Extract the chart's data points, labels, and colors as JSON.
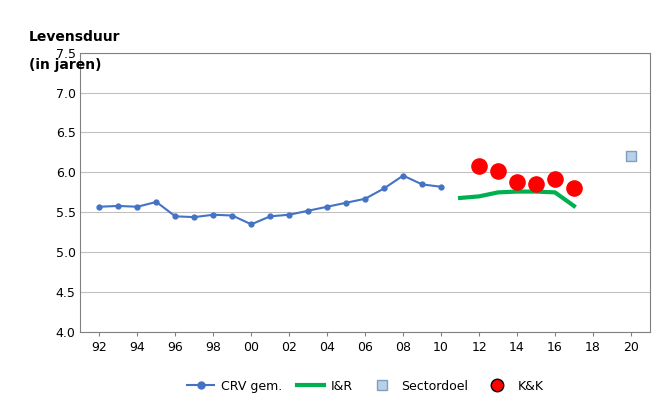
{
  "crv_x": [
    92,
    93,
    94,
    95,
    96,
    97,
    98,
    99,
    100,
    101,
    102,
    103,
    104,
    105,
    106,
    107,
    108,
    109,
    110
  ],
  "crv_y": [
    5.57,
    5.58,
    5.57,
    5.63,
    5.45,
    5.44,
    5.47,
    5.46,
    5.35,
    5.45,
    5.47,
    5.52,
    5.57,
    5.62,
    5.67,
    5.8,
    5.96,
    5.85,
    5.82
  ],
  "ir_x": [
    111,
    112,
    113,
    114,
    115,
    116,
    117
  ],
  "ir_y": [
    5.68,
    5.7,
    5.75,
    5.76,
    5.76,
    5.75,
    5.58
  ],
  "kk_x": [
    112,
    113,
    114,
    115,
    116,
    117
  ],
  "kk_y": [
    6.08,
    6.02,
    5.88,
    5.85,
    5.92,
    5.8
  ],
  "sectordoel_x": [
    120
  ],
  "sectordoel_y": [
    6.2
  ],
  "xlabel_ticks": [
    92,
    94,
    96,
    98,
    100,
    102,
    104,
    106,
    108,
    110,
    112,
    114,
    116,
    118,
    120
  ],
  "xlabel_labels": [
    "92",
    "94",
    "96",
    "98",
    "00",
    "02",
    "04",
    "06",
    "08",
    "10",
    "12",
    "14",
    "16",
    "18",
    "20"
  ],
  "ylabel_ticks": [
    4.0,
    4.5,
    5.0,
    5.5,
    6.0,
    6.5,
    7.0,
    7.5
  ],
  "ylabel_line1": "Levensduur",
  "ylabel_line2": "(in jaren)",
  "ylim": [
    4.0,
    7.5
  ],
  "xlim": [
    91,
    121
  ],
  "crv_color": "#4472C4",
  "ir_color": "#00B050",
  "kk_color": "#FF0000",
  "sectordoel_facecolor": "#B8D0E8",
  "sectordoel_edgecolor": "#7F9FBF",
  "background_color": "#FFFFFF",
  "grid_color": "#C0C0C0",
  "spine_color": "#808080",
  "legend_entries": [
    "CRV gem.",
    "I&R",
    "Sectordoel",
    "K&K"
  ],
  "tick_fontsize": 9,
  "label_fontsize": 10
}
